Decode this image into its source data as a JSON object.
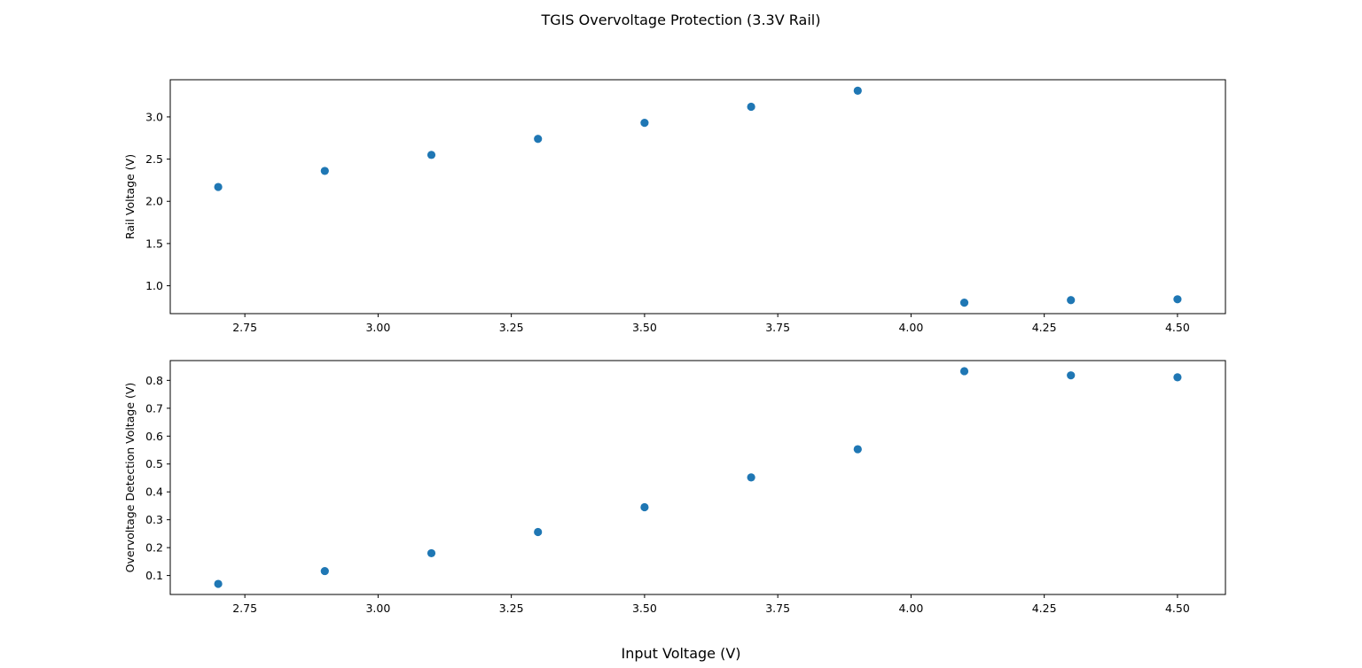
{
  "figure": {
    "title": "TGIS Overvoltage Protection (3.3V Rail)",
    "xlabel": "Input Voltage (V)"
  },
  "chart_data": [
    {
      "type": "scatter",
      "x": [
        2.7,
        2.9,
        3.1,
        3.3,
        3.5,
        3.7,
        3.9,
        4.1,
        4.3,
        4.5
      ],
      "y": [
        2.17,
        2.36,
        2.55,
        2.74,
        2.93,
        3.12,
        3.31,
        0.8,
        0.83,
        0.84
      ],
      "xlabel": "",
      "ylabel": "Rail Voltage (V)",
      "xlim": [
        2.61,
        4.59
      ],
      "ylim": [
        0.67,
        3.44
      ],
      "xticks": [
        "2.75",
        "3.00",
        "3.25",
        "3.50",
        "3.75",
        "4.00",
        "4.25",
        "4.50"
      ],
      "yticks": [
        "1.0",
        "1.5",
        "2.0",
        "2.5",
        "3.0"
      ],
      "marker_color": "#1f77b4",
      "grid": false,
      "legend": "none"
    },
    {
      "type": "scatter",
      "x": [
        2.7,
        2.9,
        3.1,
        3.3,
        3.5,
        3.7,
        3.9,
        4.1,
        4.3,
        4.5
      ],
      "y": [
        0.07,
        0.116,
        0.18,
        0.256,
        0.345,
        0.452,
        0.553,
        0.833,
        0.818,
        0.811
      ],
      "xlabel": "",
      "ylabel": "Overvoltage Detection Voltage (V)",
      "xlim": [
        2.61,
        4.59
      ],
      "ylim": [
        0.032,
        0.871
      ],
      "xticks": [
        "2.75",
        "3.00",
        "3.25",
        "3.50",
        "3.75",
        "4.00",
        "4.25",
        "4.50"
      ],
      "yticks": [
        "0.1",
        "0.2",
        "0.3",
        "0.4",
        "0.5",
        "0.6",
        "0.7",
        "0.8"
      ],
      "marker_color": "#1f77b4",
      "grid": false,
      "legend": "none"
    }
  ]
}
